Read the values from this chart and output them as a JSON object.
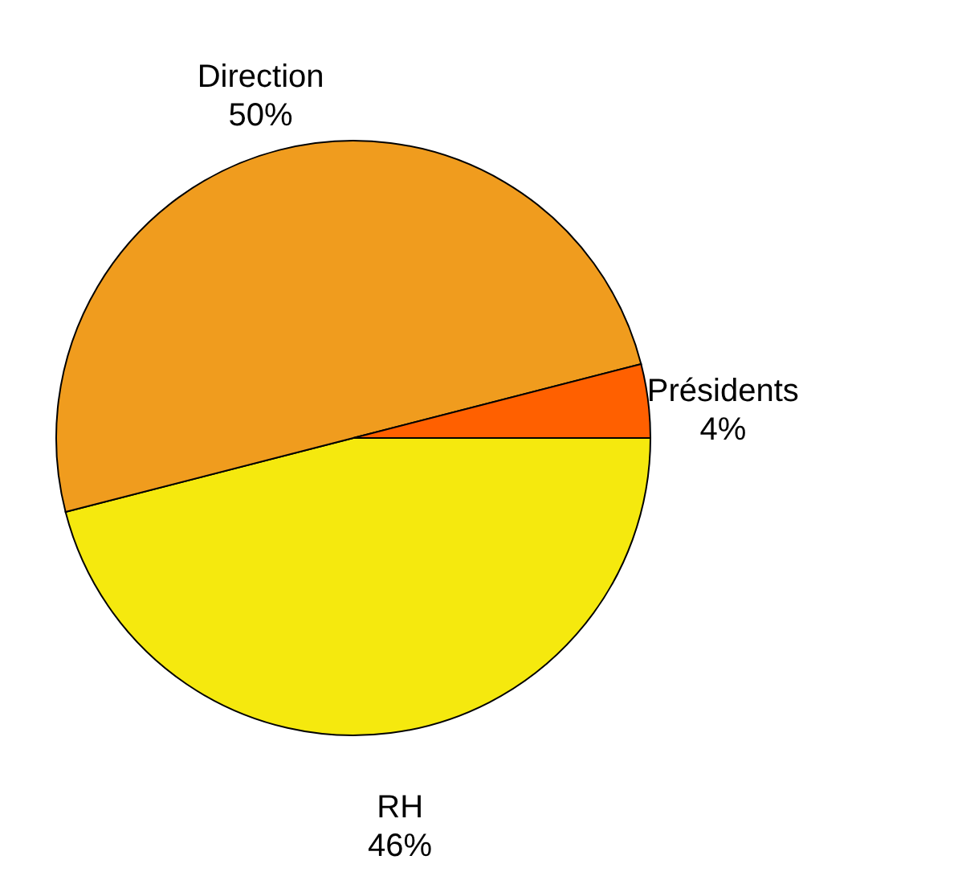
{
  "chart_data": {
    "type": "pie",
    "categories": [
      "RH",
      "Direction",
      "Présidents"
    ],
    "values": [
      46,
      50,
      4
    ],
    "value_labels": [
      "46%",
      "50%",
      "4%"
    ],
    "colors": [
      "#f5e90e",
      "#f09c1e",
      "#ff6000"
    ]
  }
}
